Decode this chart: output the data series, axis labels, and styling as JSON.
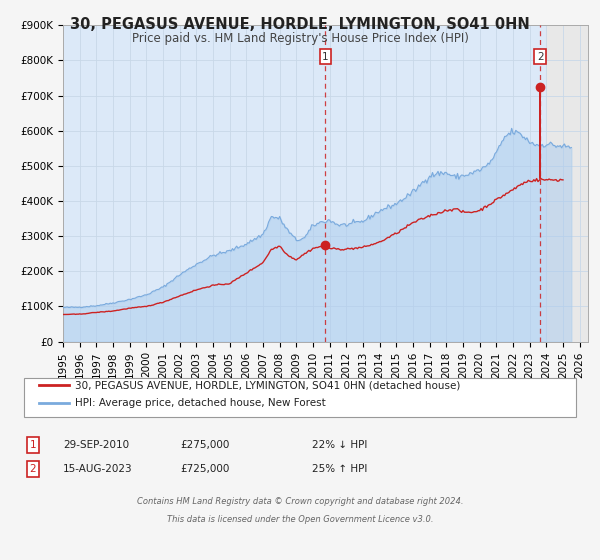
{
  "title": "30, PEGASUS AVENUE, HORDLE, LYMINGTON, SO41 0HN",
  "subtitle": "Price paid vs. HM Land Registry's House Price Index (HPI)",
  "ylim": [
    0,
    900000
  ],
  "xlim_start": 1995.0,
  "xlim_end": 2026.5,
  "yticks": [
    0,
    100000,
    200000,
    300000,
    400000,
    500000,
    600000,
    700000,
    800000,
    900000
  ],
  "ytick_labels": [
    "£0",
    "£100K",
    "£200K",
    "£300K",
    "£400K",
    "£500K",
    "£600K",
    "£700K",
    "£800K",
    "£900K"
  ],
  "xticks": [
    1995,
    1996,
    1997,
    1998,
    1999,
    2000,
    2001,
    2002,
    2003,
    2004,
    2005,
    2006,
    2007,
    2008,
    2009,
    2010,
    2011,
    2012,
    2013,
    2014,
    2015,
    2016,
    2017,
    2018,
    2019,
    2020,
    2021,
    2022,
    2023,
    2024,
    2025,
    2026
  ],
  "grid_color": "#c8d8e8",
  "plot_bg_color": "#dce9f8",
  "fig_bg_color": "#f5f5f5",
  "hpi_line_color": "#7aaadd",
  "hpi_fill_color": "#aaccee",
  "price_line_color": "#cc2222",
  "marker1_date": 2010.75,
  "marker1_price": 275000,
  "marker1_label": "1",
  "marker2_date": 2023.625,
  "marker2_price": 725000,
  "marker2_label": "2",
  "legend_line1": "30, PEGASUS AVENUE, HORDLE, LYMINGTON, SO41 0HN (detached house)",
  "legend_line2": "HPI: Average price, detached house, New Forest",
  "table_row1": [
    "1",
    "29-SEP-2010",
    "£275,000",
    "22% ↓ HPI"
  ],
  "table_row2": [
    "2",
    "15-AUG-2023",
    "£725,000",
    "25% ↑ HPI"
  ],
  "footer1": "Contains HM Land Registry data © Crown copyright and database right 2024.",
  "footer2": "This data is licensed under the Open Government Licence v3.0.",
  "shaded_region_after": 2024.0,
  "shaded_region_color": "#e8e8e8"
}
